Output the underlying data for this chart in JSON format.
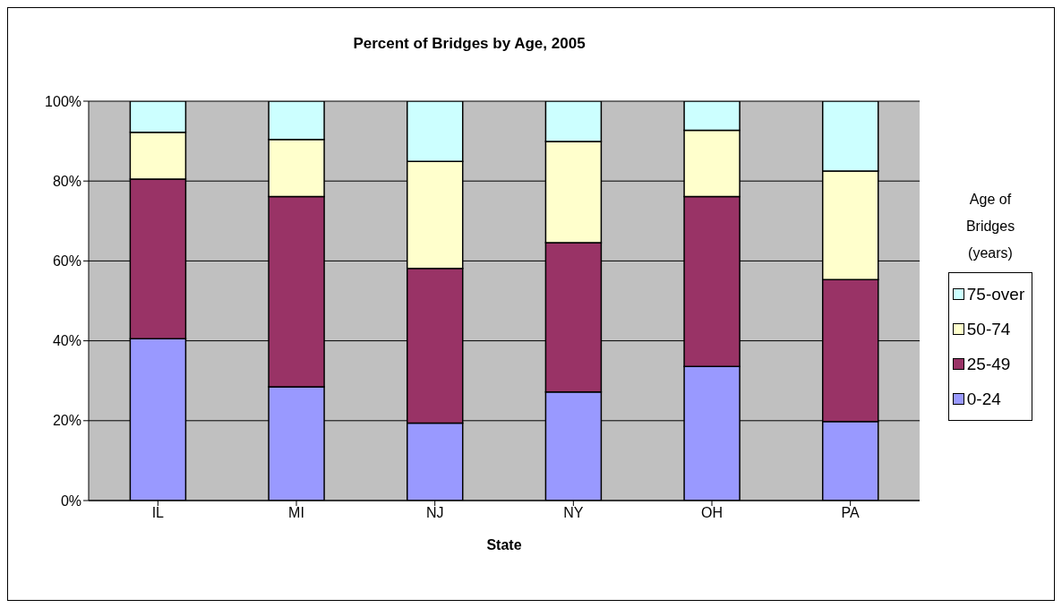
{
  "chart_data": {
    "type": "bar",
    "title": "Percent of Bridges by Age, 2005",
    "xlabel": "State",
    "legend_title": "Age of Bridges (years)",
    "stacked": true,
    "categories": [
      "IL",
      "MI",
      "NJ",
      "NY",
      "OH",
      "PA"
    ],
    "series": [
      {
        "name": "0-24",
        "color": "#9999ff",
        "values": [
          40.5,
          28.5,
          19.4,
          27.2,
          33.6,
          19.8
        ]
      },
      {
        "name": "25-49",
        "color": "#993366",
        "values": [
          40.0,
          47.6,
          38.7,
          37.4,
          42.5,
          35.5
        ]
      },
      {
        "name": "50-74",
        "color": "#ffffcc",
        "values": [
          11.7,
          14.3,
          26.8,
          25.3,
          16.6,
          27.2
        ]
      },
      {
        "name": "75-over",
        "color": "#ccffff",
        "values": [
          7.8,
          9.6,
          15.1,
          10.1,
          7.3,
          17.5
        ]
      }
    ],
    "ylim": [
      0,
      100
    ],
    "yticks": [
      {
        "value": 0,
        "label": "0%"
      },
      {
        "value": 20,
        "label": "20%"
      },
      {
        "value": 40,
        "label": "40%"
      },
      {
        "value": 60,
        "label": "60%"
      },
      {
        "value": 80,
        "label": "80%"
      },
      {
        "value": 100,
        "label": "100%"
      }
    ],
    "grid": "y",
    "legend": "right"
  }
}
